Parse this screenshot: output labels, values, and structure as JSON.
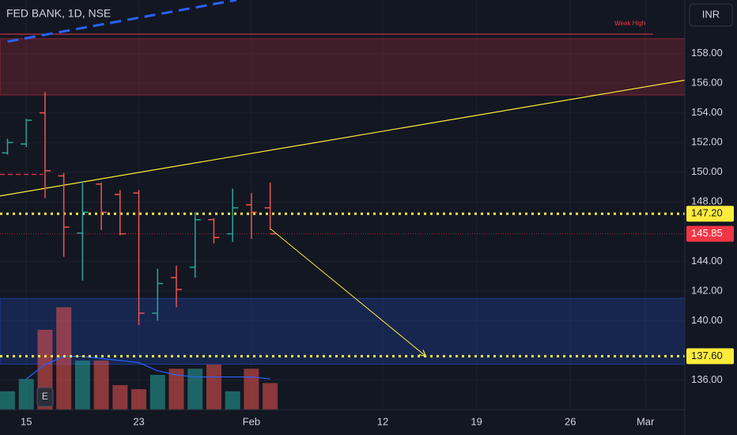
{
  "chart_data": {
    "type": "ohlc",
    "title": "FED BANK, 1D, NSE",
    "currency": "INR",
    "x": [
      0,
      1,
      2,
      3,
      4,
      5,
      6,
      7,
      8,
      9,
      10,
      11,
      12,
      13,
      14
    ],
    "open": [
      151.3,
      151.9,
      154.0,
      149.75,
      145.9,
      149.2,
      148.5,
      148.6,
      140.5,
      142.9,
      143.6,
      146.8,
      145.85,
      147.8,
      147.6
    ],
    "high": [
      152.25,
      153.6,
      155.4,
      149.95,
      149.4,
      149.3,
      148.8,
      148.8,
      143.5,
      143.7,
      147.3,
      146.9,
      148.9,
      148.6,
      149.3
    ],
    "low": [
      151.18,
      151.7,
      148.25,
      144.3,
      142.7,
      146.1,
      145.75,
      139.7,
      140.0,
      140.9,
      142.9,
      145.2,
      145.3,
      145.5,
      146.1
    ],
    "close": [
      152.0,
      153.5,
      150.1,
      146.3,
      147.3,
      147.3,
      145.85,
      140.5,
      142.5,
      142.1,
      146.8,
      145.6,
      147.6,
      147.3,
      145.85
    ],
    "up_color": "#26a69a",
    "down_color": "#ef5350",
    "volume": {
      "values": [
        0.9,
        1.5,
        3.9,
        5.0,
        2.4,
        2.4,
        1.2,
        1.0,
        1.7,
        2.0,
        2.0,
        2.2,
        0.9,
        2.0,
        1.3
      ],
      "ylim": [
        0,
        20
      ],
      "ma": [
        null,
        1.5,
        2.2,
        2.6,
        2.6,
        2.5,
        2.4,
        2.3,
        1.9,
        1.7,
        1.6,
        1.6,
        1.6,
        1.6,
        1.5
      ],
      "ma_color": "#2962ff"
    },
    "xlim": [
      -0.4,
      36.1
    ],
    "xticks": [
      {
        "value": 1,
        "label": "15"
      },
      {
        "value": 7,
        "label": "23"
      },
      {
        "value": 13,
        "label": "Feb"
      },
      {
        "value": 20,
        "label": "12"
      },
      {
        "value": 25,
        "label": "19"
      },
      {
        "value": 30,
        "label": "26"
      },
      {
        "value": 34,
        "label": "Mar"
      }
    ],
    "ylim": [
      134,
      161.6
    ],
    "yticks": [
      {
        "value": 136,
        "label": "136.00"
      },
      {
        "value": 140,
        "label": "140.00"
      },
      {
        "value": 142,
        "label": "142.00"
      },
      {
        "value": 144,
        "label": "144.00"
      },
      {
        "value": 148,
        "label": "148.00"
      },
      {
        "value": 150,
        "label": "150.00"
      },
      {
        "value": 152,
        "label": "152.00"
      },
      {
        "value": 154,
        "label": "154.00"
      },
      {
        "value": 156,
        "label": "156.00"
      },
      {
        "value": 158,
        "label": "158.00"
      }
    ],
    "grid": true,
    "price_lines": [
      {
        "value": 147.2,
        "label": "147.20",
        "color": "#ffeb3b",
        "style": "dotted-thick"
      },
      {
        "value": 145.85,
        "label": "145.85",
        "color": "#f23645",
        "style": "dotted-thin"
      },
      {
        "value": 137.6,
        "label": "137.60",
        "color": "#ffeb3b",
        "style": "dotted-thick"
      }
    ],
    "zones": [
      {
        "y": [
          159.0,
          155.2
        ],
        "color": "#f23645"
      },
      {
        "y": [
          141.5,
          137.06
        ],
        "color": "#2962ff"
      }
    ],
    "lines": [
      {
        "x": [
          -0.4,
          34.4
        ],
        "y": [
          159.3,
          159.3
        ],
        "color": "#f23645",
        "width": 1
      },
      {
        "x": [
          -0.4,
          36.1
        ],
        "y": [
          148.4,
          156.2
        ],
        "color": "#ffeb3b",
        "width": 1.2
      },
      {
        "x": [
          0,
          12.2
        ],
        "y": [
          158.8,
          161.6
        ],
        "color": "#2962ff",
        "width": 3,
        "dash": true
      },
      {
        "x": [
          -0.4,
          1.9
        ],
        "y": [
          149.85,
          149.85
        ],
        "color": "#f23645",
        "width": 1.2,
        "dash": true
      },
      {
        "x": [
          14,
          22.3
        ],
        "y": [
          146.2,
          137.6
        ],
        "color": "#ffeb3b",
        "width": 1,
        "arrow": true
      }
    ],
    "annotations": [
      {
        "text": "Weak High",
        "x": 34,
        "y": 160.0,
        "color": "#f23645"
      }
    ],
    "earnings": {
      "x": 2,
      "label": "E"
    }
  }
}
